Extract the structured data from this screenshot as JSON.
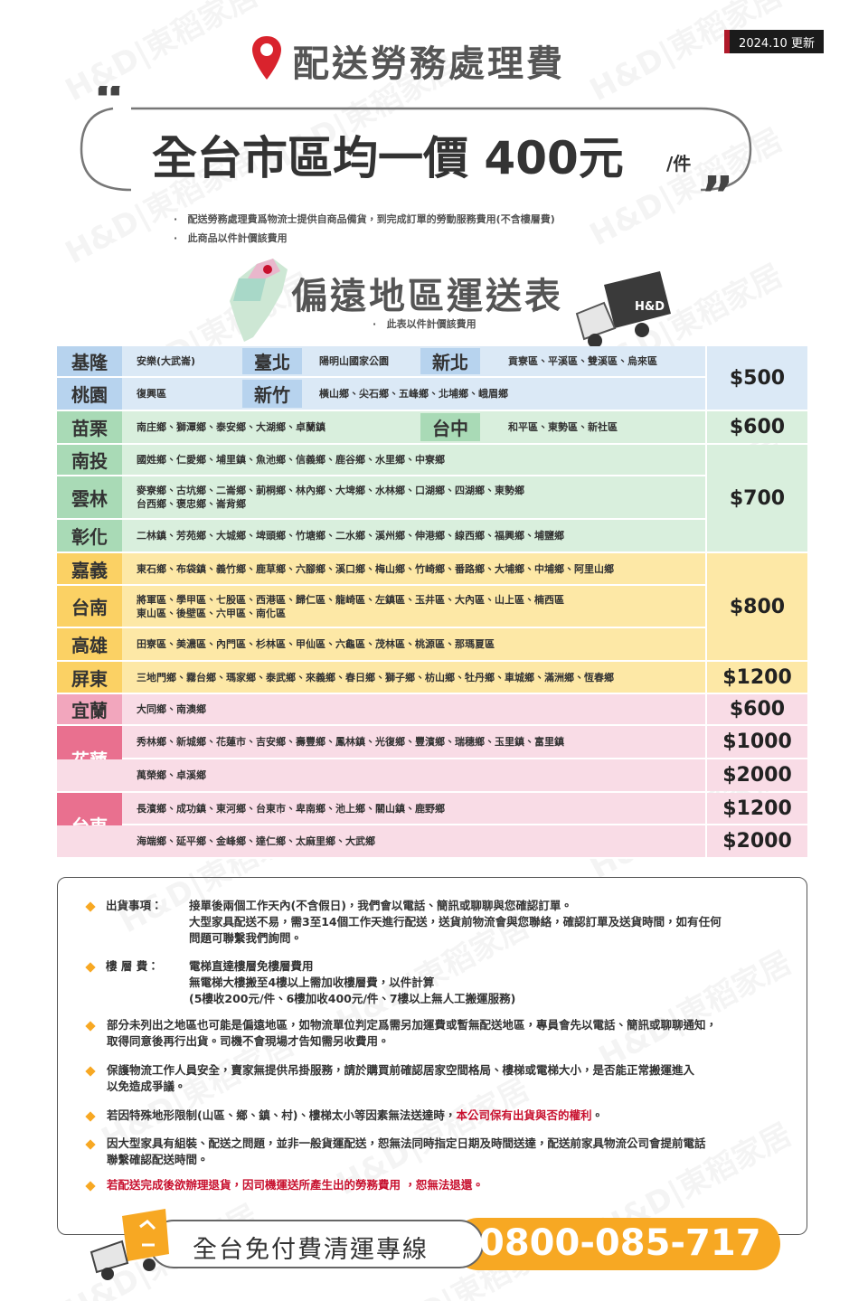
{
  "badge": "2024.10 更新",
  "title": "配送勞務處理費",
  "headline": {
    "text": "全台市區均一價 400元",
    "unit": "/件"
  },
  "notes": [
    "配送勞務處理費爲物流士提供自商品備貨，到完成訂單的勞動服務費用(不含樓層費)",
    "此商品以件計價該費用"
  ],
  "remote": {
    "title": "偏遠地區運送表",
    "subtitle": "此表以件計價該費用"
  },
  "truck_logo": "H&D",
  "watermark": "H&D|東稻家居",
  "table": {
    "rows": [
      [
        {
          "region": "基隆",
          "areas": [
            "安樂(大武崙)"
          ]
        },
        {
          "region": "臺北",
          "areas": [
            "陽明山國家公園"
          ]
        },
        {
          "region": "新北",
          "areas": [
            "貢寮區、平溪區、雙溪區、烏來區"
          ]
        }
      ],
      [
        {
          "region": "桃園",
          "areas": [
            "復興區"
          ]
        },
        {
          "region": "新竹",
          "areas": [
            "橫山鄉、尖石鄉、五峰鄉、北埔鄉、峨眉鄉"
          ]
        }
      ],
      [
        {
          "region": "苗栗",
          "areas": [
            "南庄鄉、獅潭鄉、泰安鄉、大湖鄉、卓蘭鎮"
          ]
        },
        {
          "region": "台中",
          "areas": [
            "和平區、東勢區、新社區"
          ]
        }
      ],
      [
        {
          "region": "南投",
          "areas": [
            "國姓鄉、仁愛鄉、埔里鎮、魚池鄉、信義鄉、鹿谷鄉、水里鄉、中寮鄉"
          ]
        }
      ],
      [
        {
          "region": "雲林",
          "areas": [
            "麥寮鄉、古坑鄉、二崙鄉、莿桐鄉、林內鄉、大埤鄉、水林鄉、口湖鄉、四湖鄉、東勢鄉",
            "台西鄉、褒忠鄉、崙背鄉"
          ]
        }
      ],
      [
        {
          "region": "彰化",
          "areas": [
            "二林鎮、芳苑鄉、大城鄉、埤頭鄉、竹塘鄉、二水鄉、溪州鄉、伸港鄉、線西鄉、福興鄉、埔鹽鄉"
          ]
        }
      ],
      [
        {
          "region": "嘉義",
          "areas": [
            "東石鄉、布袋鎮、義竹鄉、鹿草鄉、六腳鄉、溪口鄉、梅山鄉、竹崎鄉、番路鄉、大埔鄉、中埔鄉、阿里山鄉"
          ]
        }
      ],
      [
        {
          "region": "台南",
          "areas": [
            "將軍區、學甲區、七股區、西港區、歸仁區、龍崎區、左鎮區、玉井區、大內區、山上區、楠西區",
            "東山區、後壁區、六甲區、南化區"
          ]
        }
      ],
      [
        {
          "region": "高雄",
          "areas": [
            "田寮區、美濃區、內門區、杉林區、甲仙區、六龜區、茂林區、桃源區、那瑪夏區"
          ]
        }
      ],
      [
        {
          "region": "屏東",
          "areas": [
            "三地門鄉、霧台鄉、瑪家鄉、泰武鄉、來義鄉、春日鄉、獅子鄉、枋山鄉、牡丹鄉、車城鄉、滿洲鄉、恆春鄉"
          ]
        }
      ],
      [
        {
          "region": "宜蘭",
          "areas": [
            "大同鄉、南澳鄉"
          ]
        }
      ],
      [
        {
          "region": "花蓮",
          "areas": [
            "秀林鄉、新城鄉、花蓮市、吉安鄉、壽豐鄉、鳳林鎮、光復鄉、豐濱鄉、瑞穗鄉、玉里鎮、富里鎮"
          ]
        }
      ],
      [
        {
          "areas": [
            "萬榮鄉、卓溪鄉"
          ]
        }
      ],
      [
        {
          "region": "台東",
          "areas": [
            "長濱鄉、成功鎮、東河鄉、台東市、卑南鄉、池上鄉、關山鎮、鹿野鄉"
          ]
        }
      ],
      [
        {
          "areas": [
            "海端鄉、延平鄉、金峰鄉、達仁鄉、太麻里鄉、大武鄉"
          ]
        }
      ]
    ],
    "prices": [
      "$500",
      "$600",
      "$700",
      "$800",
      "$1200",
      "$600",
      "$1000",
      "$2000",
      "$1200",
      "$2000"
    ]
  },
  "info": {
    "items": [
      {
        "label": "出貨事項：",
        "lines": [
          "接單後兩個工作天內(不含假日)，我們會以電話、簡訊或聊聊與您確認訂單。",
          "大型家具配送不易，需3至14個工作天進行配送，送貨前物流會與您聯絡，確認訂單及送貨時間，如有任何",
          "問題可聯繫我們詢問。"
        ]
      },
      {
        "label": "樓 層 費：",
        "lines": [
          "電梯直達樓層免樓層費用",
          "無電梯大樓搬至4樓以上需加收樓層費，以件計算",
          "(5樓收200元/件、6樓加收400元/件、7樓以上無人工搬運服務)"
        ]
      },
      {
        "lines": [
          "部分未列出之地區也可能是偏遠地區，如物流單位判定爲需另加運費或暫無配送地區，專員會先以電話、簡訊或聊聊通知，",
          "取得同意後再行出貨。司機不會現場才告知需另收費用。"
        ]
      },
      {
        "lines": [
          "保護物流工作人員安全，賣家無提供吊掛服務，請於購買前確認居家空間格局、樓梯或電梯大小，是否能正常搬運進入",
          "以免造成爭議。"
        ]
      },
      {
        "lines": [
          "若因特殊地形限制(山區、鄉、鎮、村)、樓梯太小等因素無法送達時，"
        ],
        "highlight": "本公司保有出貨與否的權利",
        "end": "。"
      },
      {
        "lines": [
          "因大型家具有組裝、配送之問題，並非一般貨運配送，恕無法同時指定日期及時間送達，配送前家具物流公司會提前電話",
          "聯繫確認配送時間。"
        ]
      },
      {
        "lines": [
          "若配送完成後欲辦理退貨，因司機運送所產生出的勞務費用 ，恕無法退還。"
        ],
        "color": "#c8102e"
      }
    ]
  },
  "footer": {
    "label": "全台免付費清運專線",
    "phone": "0800-085-717"
  }
}
